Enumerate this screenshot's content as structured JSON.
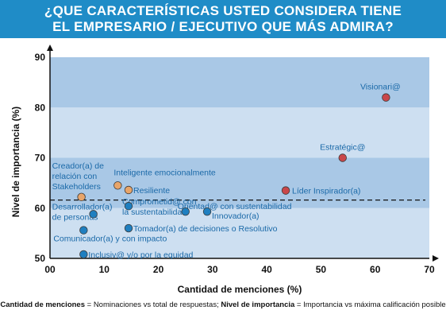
{
  "title": {
    "line1": "¿QUE CARACTERÍSTICAS USTED CONSIDERA TIENE",
    "line2": "EL EMPRESARIO / EJECUTIVO QUE MÁS ADMIRA?"
  },
  "colors": {
    "title_bg": "#1f8cc7",
    "band_dark": "#a9c8e6",
    "band_light": "#cddff1",
    "point_red": "#c9474a",
    "point_orange": "#e8a56a",
    "point_blue": "#1f7fc0",
    "label_blue": "#1a69a8"
  },
  "chart_data": {
    "type": "scatter",
    "xlabel": "Cantidad de menciones (%)",
    "ylabel": "Nivel de importancia (%)",
    "xlim": [
      0,
      70
    ],
    "ylim": [
      50,
      90
    ],
    "xticks": [
      0,
      10,
      20,
      30,
      40,
      50,
      60,
      70
    ],
    "yticks": [
      50,
      60,
      70,
      80,
      90
    ],
    "tick_labels_x": [
      "00",
      "10",
      "20",
      "30",
      "40",
      "50",
      "60",
      "70"
    ],
    "tick_labels_y": [
      "50",
      "60",
      "70",
      "80",
      "90"
    ],
    "reference_line_y": 61.6,
    "points": [
      {
        "label": "Visionari@",
        "x": 62,
        "y": 82,
        "color": "red"
      },
      {
        "label": "Estratégic@",
        "x": 54,
        "y": 70,
        "color": "red"
      },
      {
        "label": "Líder Inspirador(a)",
        "x": 43.5,
        "y": 63.5,
        "color": "red"
      },
      {
        "label": "Inteligente emocionalmente",
        "x": 12.5,
        "y": 64.5,
        "color": "orange"
      },
      {
        "label": "Resiliente",
        "x": 14.5,
        "y": 63.6,
        "color": "orange"
      },
      {
        "label": "Creador(a) de relación con Stakeholders",
        "x": 5.8,
        "y": 62.2,
        "color": "orange"
      },
      {
        "label": "Comprometid@ con la sustentabilidad",
        "x": 14.5,
        "y": 60.4,
        "color": "blue"
      },
      {
        "label": "Orientad@ con sustentabilidad",
        "x": 25,
        "y": 59.3,
        "color": "blue"
      },
      {
        "label": "Innovador(a)",
        "x": 29,
        "y": 59.3,
        "color": "blue"
      },
      {
        "label": "Desarrollador(a) de personas",
        "x": 8,
        "y": 58.8,
        "color": "blue"
      },
      {
        "label": "Tomador(a) de decisiones o Resolutivo",
        "x": 14.5,
        "y": 56,
        "color": "blue"
      },
      {
        "label": "Comunicador(a) y con impacto",
        "x": 6.2,
        "y": 55.6,
        "color": "blue"
      },
      {
        "label": "Inclusiv@ y/o por la equidad",
        "x": 6.2,
        "y": 50.8,
        "color": "blue"
      }
    ]
  },
  "footnote": {
    "term1": "Cantidad de menciones",
    "def1": " = Nominaciones vs total de respuestas; ",
    "term2": "Nivel de importancia",
    "def2": " = Importancia vs máxima calificación posible"
  }
}
